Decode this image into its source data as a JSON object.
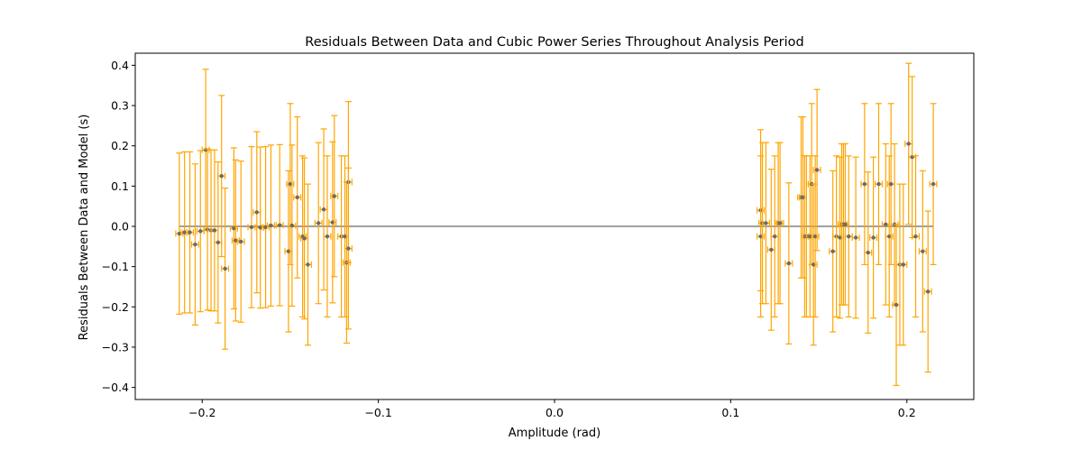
{
  "chart_data": {
    "type": "scatter",
    "title": "Residuals Between Data and Cubic Power Series Throughout Analysis Period",
    "xlabel": "Amplitude (rad)",
    "ylabel": "Residuals Between Data and Model (s)",
    "xlim": [
      -0.238,
      0.238
    ],
    "ylim": [
      -0.43,
      0.43
    ],
    "x_ticks": [
      -0.2,
      -0.1,
      0.0,
      0.1,
      0.2
    ],
    "x_tick_labels": [
      "−0.2",
      "−0.1",
      "0.0",
      "0.1",
      "0.2"
    ],
    "y_ticks": [
      0.4,
      0.3,
      0.2,
      0.1,
      0.0,
      -0.1,
      -0.2,
      -0.3,
      -0.4
    ],
    "y_tick_labels": [
      "0.4",
      "0.3",
      "0.2",
      "0.1",
      "0.0",
      "−0.1",
      "−0.2",
      "−0.3",
      "−0.4"
    ],
    "grid": false,
    "legend": "none",
    "colors": {
      "errorbar": "#ffa500",
      "marker": "#6b6b6b",
      "reference_line": "#808080",
      "axes": "#000000"
    },
    "reference_line": {
      "x_start": -0.213,
      "x_end": 0.215,
      "y": 0.0
    },
    "x_error": 0.002,
    "points": [
      {
        "x": -0.213,
        "y": -0.018,
        "yerr": 0.2
      },
      {
        "x": -0.21,
        "y": -0.015,
        "yerr": 0.2
      },
      {
        "x": -0.207,
        "y": -0.015,
        "yerr": 0.2
      },
      {
        "x": -0.204,
        "y": -0.045,
        "yerr": 0.2
      },
      {
        "x": -0.201,
        "y": -0.012,
        "yerr": 0.2
      },
      {
        "x": -0.198,
        "y": 0.19,
        "yerr": 0.2
      },
      {
        "x": -0.197,
        "y": -0.008,
        "yerr": 0.2
      },
      {
        "x": -0.195,
        "y": -0.01,
        "yerr": 0.2
      },
      {
        "x": -0.193,
        "y": -0.01,
        "yerr": 0.2
      },
      {
        "x": -0.191,
        "y": -0.04,
        "yerr": 0.2
      },
      {
        "x": -0.189,
        "y": 0.125,
        "yerr": 0.2
      },
      {
        "x": -0.187,
        "y": -0.105,
        "yerr": 0.2
      },
      {
        "x": -0.182,
        "y": -0.005,
        "yerr": 0.2
      },
      {
        "x": -0.181,
        "y": -0.035,
        "yerr": 0.2
      },
      {
        "x": -0.178,
        "y": -0.038,
        "yerr": 0.2
      },
      {
        "x": -0.172,
        "y": -0.002,
        "yerr": 0.2
      },
      {
        "x": -0.169,
        "y": 0.035,
        "yerr": 0.2
      },
      {
        "x": -0.167,
        "y": -0.003,
        "yerr": 0.2
      },
      {
        "x": -0.164,
        "y": -0.002,
        "yerr": 0.2
      },
      {
        "x": -0.161,
        "y": 0.002,
        "yerr": 0.2
      },
      {
        "x": -0.156,
        "y": 0.003,
        "yerr": 0.2
      },
      {
        "x": -0.151,
        "y": -0.062,
        "yerr": 0.2
      },
      {
        "x": -0.15,
        "y": 0.105,
        "yerr": 0.2
      },
      {
        "x": -0.149,
        "y": 0.002,
        "yerr": 0.2
      },
      {
        "x": -0.146,
        "y": 0.072,
        "yerr": 0.2
      },
      {
        "x": -0.143,
        "y": -0.025,
        "yerr": 0.2
      },
      {
        "x": -0.142,
        "y": -0.03,
        "yerr": 0.2
      },
      {
        "x": -0.14,
        "y": -0.095,
        "yerr": 0.2
      },
      {
        "x": -0.134,
        "y": 0.008,
        "yerr": 0.2
      },
      {
        "x": -0.131,
        "y": 0.042,
        "yerr": 0.2
      },
      {
        "x": -0.129,
        "y": -0.025,
        "yerr": 0.2
      },
      {
        "x": -0.126,
        "y": 0.01,
        "yerr": 0.2
      },
      {
        "x": -0.125,
        "y": 0.075,
        "yerr": 0.2
      },
      {
        "x": -0.121,
        "y": -0.025,
        "yerr": 0.2
      },
      {
        "x": -0.119,
        "y": -0.025,
        "yerr": 0.2
      },
      {
        "x": -0.118,
        "y": -0.09,
        "yerr": 0.2
      },
      {
        "x": -0.117,
        "y": 0.11,
        "yerr": 0.2
      },
      {
        "x": -0.117,
        "y": -0.055,
        "yerr": 0.2
      },
      {
        "x": 0.117,
        "y": 0.04,
        "yerr": 0.2
      },
      {
        "x": 0.117,
        "y": -0.025,
        "yerr": 0.2
      },
      {
        "x": 0.118,
        "y": 0.008,
        "yerr": 0.2
      },
      {
        "x": 0.12,
        "y": 0.008,
        "yerr": 0.2
      },
      {
        "x": 0.123,
        "y": -0.058,
        "yerr": 0.2
      },
      {
        "x": 0.125,
        "y": -0.025,
        "yerr": 0.2
      },
      {
        "x": 0.127,
        "y": 0.008,
        "yerr": 0.2
      },
      {
        "x": 0.128,
        "y": 0.008,
        "yerr": 0.2
      },
      {
        "x": 0.133,
        "y": -0.092,
        "yerr": 0.2
      },
      {
        "x": 0.14,
        "y": 0.072,
        "yerr": 0.2
      },
      {
        "x": 0.141,
        "y": 0.072,
        "yerr": 0.2
      },
      {
        "x": 0.142,
        "y": -0.025,
        "yerr": 0.2
      },
      {
        "x": 0.143,
        "y": -0.025,
        "yerr": 0.2
      },
      {
        "x": 0.145,
        "y": -0.025,
        "yerr": 0.2
      },
      {
        "x": 0.146,
        "y": 0.105,
        "yerr": 0.2
      },
      {
        "x": 0.147,
        "y": -0.095,
        "yerr": 0.2
      },
      {
        "x": 0.148,
        "y": -0.025,
        "yerr": 0.2
      },
      {
        "x": 0.149,
        "y": 0.14,
        "yerr": 0.2
      },
      {
        "x": 0.158,
        "y": -0.062,
        "yerr": 0.2
      },
      {
        "x": 0.16,
        "y": -0.025,
        "yerr": 0.2
      },
      {
        "x": 0.162,
        "y": -0.028,
        "yerr": 0.2
      },
      {
        "x": 0.163,
        "y": 0.005,
        "yerr": 0.2
      },
      {
        "x": 0.164,
        "y": 0.005,
        "yerr": 0.2
      },
      {
        "x": 0.165,
        "y": 0.005,
        "yerr": 0.2
      },
      {
        "x": 0.167,
        "y": -0.025,
        "yerr": 0.2
      },
      {
        "x": 0.171,
        "y": -0.028,
        "yerr": 0.2
      },
      {
        "x": 0.176,
        "y": 0.105,
        "yerr": 0.2
      },
      {
        "x": 0.178,
        "y": -0.065,
        "yerr": 0.2
      },
      {
        "x": 0.181,
        "y": -0.028,
        "yerr": 0.2
      },
      {
        "x": 0.184,
        "y": 0.105,
        "yerr": 0.2
      },
      {
        "x": 0.188,
        "y": 0.005,
        "yerr": 0.2
      },
      {
        "x": 0.19,
        "y": -0.025,
        "yerr": 0.2
      },
      {
        "x": 0.191,
        "y": 0.105,
        "yerr": 0.2
      },
      {
        "x": 0.193,
        "y": 0.005,
        "yerr": 0.2
      },
      {
        "x": 0.194,
        "y": -0.195,
        "yerr": 0.2
      },
      {
        "x": 0.196,
        "y": -0.095,
        "yerr": 0.2
      },
      {
        "x": 0.198,
        "y": -0.095,
        "yerr": 0.2
      },
      {
        "x": 0.201,
        "y": 0.205,
        "yerr": 0.2
      },
      {
        "x": 0.203,
        "y": 0.172,
        "yerr": 0.2
      },
      {
        "x": 0.205,
        "y": -0.025,
        "yerr": 0.2
      },
      {
        "x": 0.209,
        "y": -0.062,
        "yerr": 0.2
      },
      {
        "x": 0.212,
        "y": -0.162,
        "yerr": 0.2
      },
      {
        "x": 0.215,
        "y": 0.105,
        "yerr": 0.2
      }
    ]
  }
}
